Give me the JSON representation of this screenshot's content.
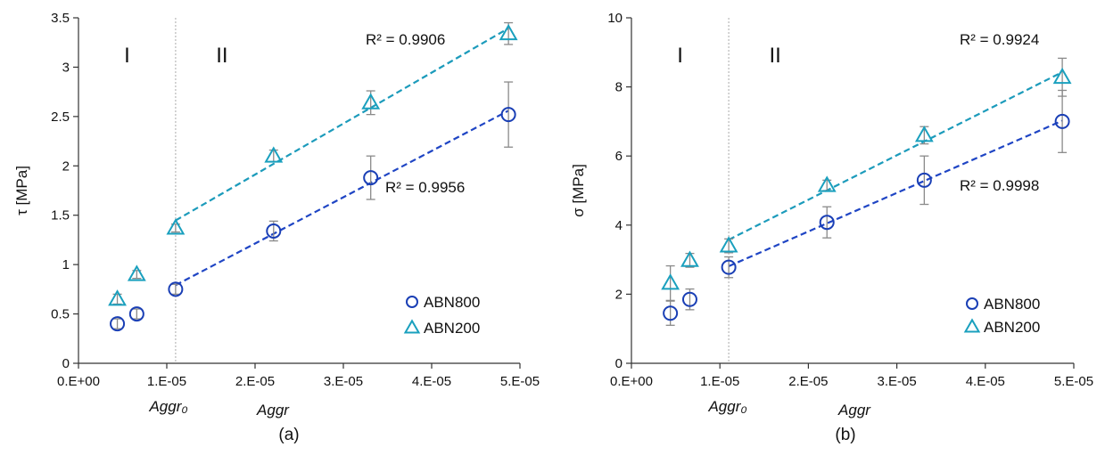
{
  "chart_data": [
    {
      "type": "scatter",
      "caption": "(a)",
      "ylabel": "τ [MPa]",
      "xlabel": "Aggr",
      "x_marker_label": "Aggr₀",
      "x_marker": 1.1e-05,
      "ylim": [
        0,
        3.5
      ],
      "xlim": [
        0,
        5e-05
      ],
      "yticks": [
        0,
        0.5,
        1,
        1.5,
        2,
        2.5,
        3,
        3.5
      ],
      "ytick_labels": [
        "0",
        "0.5",
        "1",
        "1.5",
        "2",
        "2.5",
        "3",
        "3.5"
      ],
      "xticks": [
        0,
        1e-05,
        2e-05,
        3e-05,
        4e-05,
        5e-05
      ],
      "xtick_labels": [
        "0.E+00",
        "1.E-05",
        "2.E-05",
        "3.E-05",
        "4.E-05",
        "5.E-05"
      ],
      "regions": [
        "I",
        "II"
      ],
      "legend_position": "bottom-right",
      "series": [
        {
          "name": "ABN800",
          "marker": "circle",
          "color": "#1a3fb5",
          "line_color": "#1f45c4",
          "x": [
            4.4e-06,
            6.6e-06,
            1.1e-05,
            2.21e-05,
            3.31e-05,
            4.87e-05
          ],
          "y": [
            0.4,
            0.5,
            0.75,
            1.34,
            1.88,
            2.52
          ],
          "err": [
            0.05,
            0.05,
            0.05,
            0.1,
            0.22,
            0.33
          ],
          "fit_from": 2,
          "r2": "R² = 0.9956"
        },
        {
          "name": "ABN200",
          "marker": "triangle",
          "color": "#1aa0be",
          "line_color": "#1c9bbb",
          "x": [
            4.4e-06,
            6.6e-06,
            1.1e-05,
            2.21e-05,
            3.31e-05,
            4.87e-05
          ],
          "y": [
            0.65,
            0.9,
            1.37,
            2.1,
            2.64,
            3.34
          ],
          "err": [
            0.05,
            0.04,
            0.04,
            0.06,
            0.12,
            0.11
          ],
          "fit_from": 2,
          "r2": "R² = 0.9906"
        }
      ]
    },
    {
      "type": "scatter",
      "caption": "(b)",
      "ylabel": "σ [MPa]",
      "xlabel": "Aggr",
      "x_marker_label": "Aggr₀",
      "x_marker": 1.1e-05,
      "ylim": [
        0,
        10
      ],
      "xlim": [
        0,
        5e-05
      ],
      "yticks": [
        0,
        2,
        4,
        6,
        8,
        10
      ],
      "ytick_labels": [
        "0",
        "2",
        "4",
        "6",
        "8",
        "10"
      ],
      "xticks": [
        0,
        1e-05,
        2e-05,
        3e-05,
        4e-05,
        5e-05
      ],
      "xtick_labels": [
        "0.E+00",
        "1.E-05",
        "2.E-05",
        "3.E-05",
        "4.E-05",
        "5.E-05"
      ],
      "regions": [
        "I",
        "II"
      ],
      "legend_position": "bottom-right",
      "series": [
        {
          "name": "ABN800",
          "marker": "circle",
          "color": "#1a3fb5",
          "line_color": "#1f45c4",
          "x": [
            4.4e-06,
            6.6e-06,
            1.1e-05,
            2.21e-05,
            3.31e-05,
            4.87e-05
          ],
          "y": [
            1.45,
            1.85,
            2.78,
            4.08,
            5.3,
            7.0
          ],
          "err": [
            0.35,
            0.3,
            0.3,
            0.45,
            0.7,
            0.9
          ],
          "fit_from": 2,
          "r2": "R² = 0.9998"
        },
        {
          "name": "ABN200",
          "marker": "triangle",
          "color": "#1aa0be",
          "line_color": "#1c9bbb",
          "x": [
            4.4e-06,
            6.6e-06,
            1.1e-05,
            2.21e-05,
            3.31e-05,
            4.87e-05
          ],
          "y": [
            2.32,
            2.98,
            3.4,
            5.15,
            6.6,
            8.28
          ],
          "err": [
            0.5,
            0.2,
            0.2,
            0.15,
            0.25,
            0.55
          ],
          "fit_from": 2,
          "r2": "R² = 0.9924"
        }
      ]
    }
  ]
}
